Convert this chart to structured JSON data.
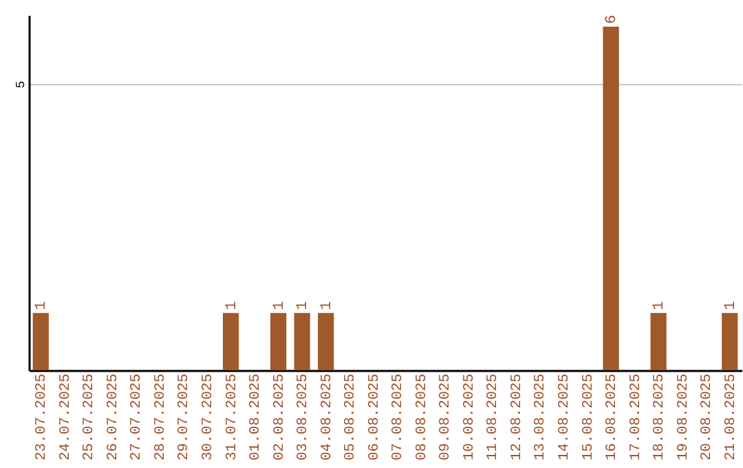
{
  "chart_data": {
    "type": "bar",
    "categories": [
      "23.07.2025",
      "24.07.2025",
      "25.07.2025",
      "26.07.2025",
      "27.07.2025",
      "28.07.2025",
      "29.07.2025",
      "30.07.2025",
      "31.07.2025",
      "01.08.2025",
      "02.08.2025",
      "03.08.2025",
      "04.08.2025",
      "05.08.2025",
      "06.08.2025",
      "07.08.2025",
      "08.08.2025",
      "09.08.2025",
      "10.08.2025",
      "11.08.2025",
      "12.08.2025",
      "13.08.2025",
      "14.08.2025",
      "15.08.2025",
      "16.08.2025",
      "17.08.2025",
      "18.08.2025",
      "19.08.2025",
      "20.08.2025",
      "21.08.2025"
    ],
    "values": [
      1,
      0,
      0,
      0,
      0,
      0,
      0,
      0,
      1,
      0,
      1,
      1,
      1,
      0,
      0,
      0,
      0,
      0,
      0,
      0,
      0,
      0,
      0,
      0,
      6,
      0,
      1,
      0,
      0,
      1
    ],
    "value_labels": [
      "1",
      null,
      null,
      null,
      null,
      null,
      null,
      null,
      "1",
      null,
      "1",
      "1",
      "1",
      null,
      null,
      null,
      null,
      null,
      null,
      null,
      null,
      null,
      null,
      null,
      "6",
      null,
      "1",
      null,
      null,
      "1"
    ],
    "color": "#a0592b",
    "ylim": [
      0,
      6.2
    ],
    "yticks": [
      5
    ],
    "grid": "y"
  }
}
